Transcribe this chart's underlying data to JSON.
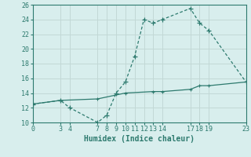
{
  "line1_x": [
    0,
    3,
    4,
    7,
    8,
    9,
    10,
    11,
    12,
    13,
    14,
    17,
    18,
    19,
    23
  ],
  "line1_y": [
    12.5,
    13.0,
    12.0,
    10.0,
    11.0,
    14.0,
    15.5,
    19.0,
    24.0,
    23.5,
    24.0,
    25.5,
    23.5,
    22.5,
    15.5
  ],
  "line2_x": [
    0,
    3,
    7,
    10,
    13,
    14,
    17,
    18,
    19,
    23
  ],
  "line2_y": [
    12.5,
    13.0,
    13.2,
    14.0,
    14.2,
    14.2,
    14.5,
    15.0,
    15.0,
    15.5
  ],
  "line_color": "#2d7a6e",
  "bg_color": "#d8eeed",
  "grid_color": "#c2d8d6",
  "xlabel": "Humidex (Indice chaleur)",
  "xlim": [
    0,
    23
  ],
  "ylim": [
    10,
    26
  ],
  "yticks": [
    10,
    12,
    14,
    16,
    18,
    20,
    22,
    24,
    26
  ],
  "xticks": [
    0,
    3,
    4,
    7,
    8,
    9,
    10,
    11,
    12,
    13,
    14,
    17,
    18,
    19,
    23
  ],
  "xlabel_fontsize": 7.0,
  "tick_fontsize": 6.0
}
